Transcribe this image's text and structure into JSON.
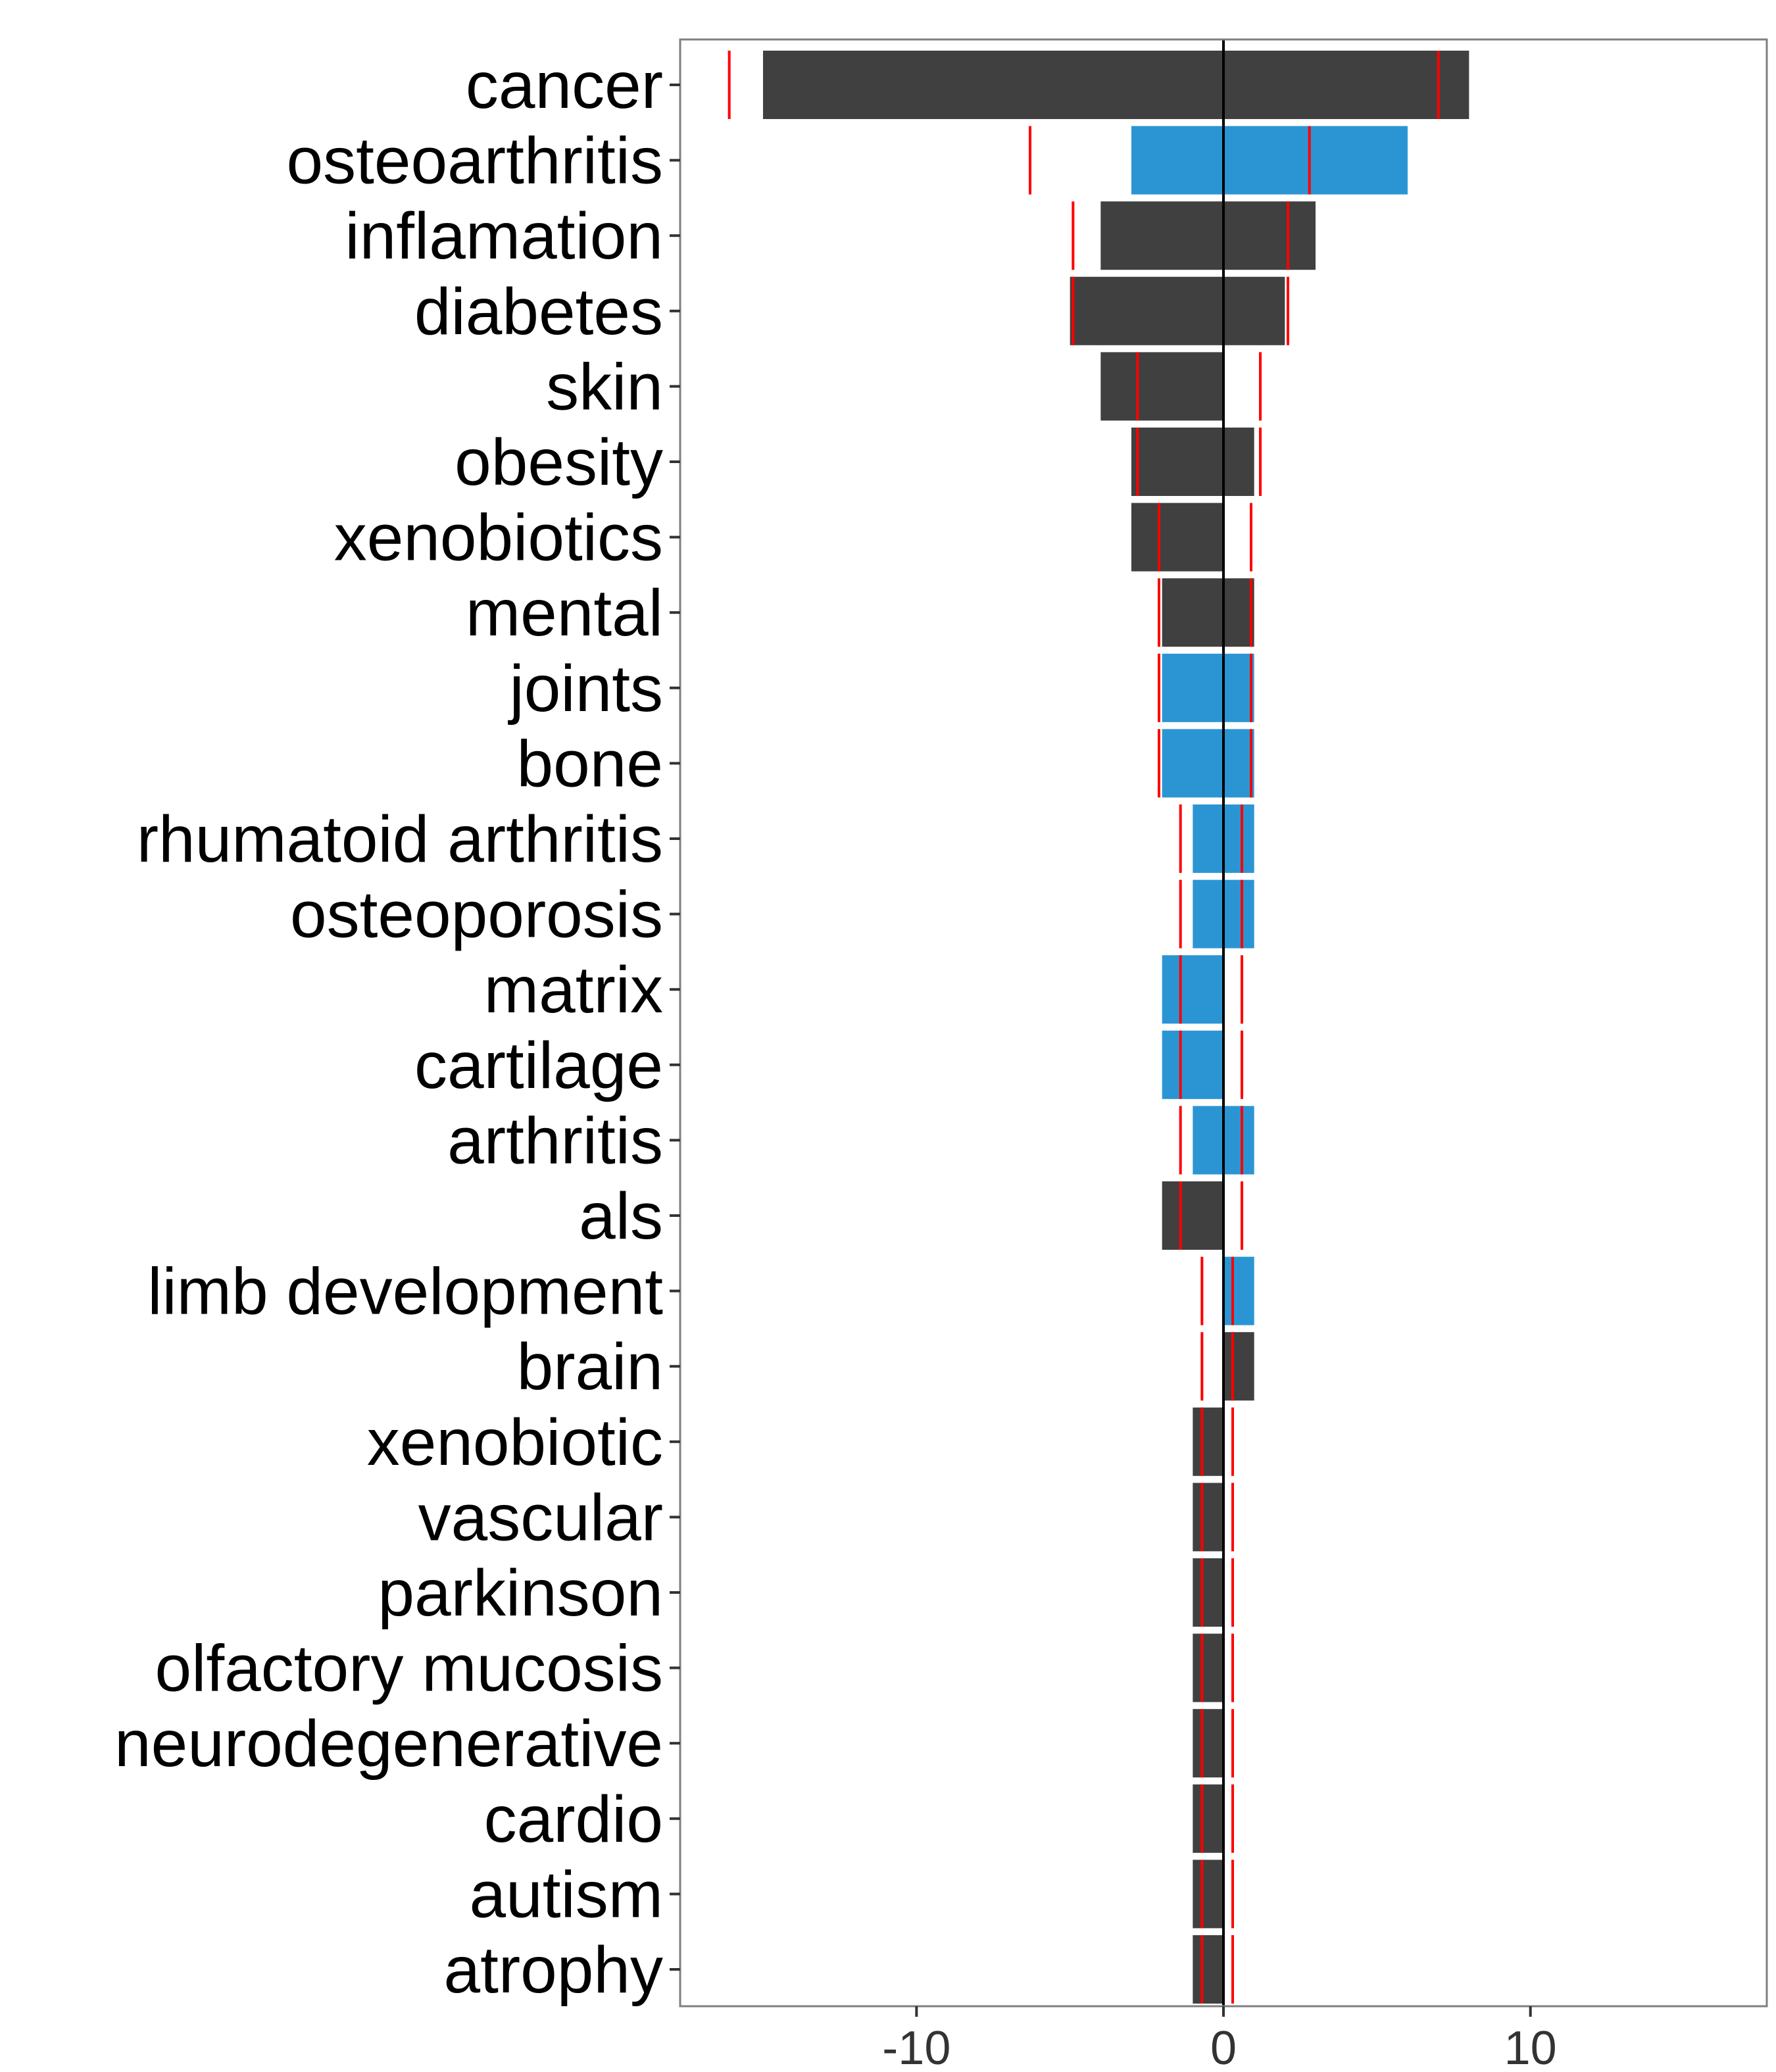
{
  "chart_data": {
    "type": "bar",
    "orientation": "horizontal",
    "title": "",
    "xlabel": "",
    "ylabel": "",
    "xlim": [
      -17.7,
      17.7
    ],
    "x_ticks": [
      -10,
      0,
      10
    ],
    "x_tick_labels": [
      "-10",
      "0",
      "10"
    ],
    "grid": false,
    "legend": "none",
    "colors": {
      "bar_dark": "#404040",
      "bar_blue": "#2b95d4",
      "marker": "#ff0000",
      "zero_line": "#000000",
      "frame": "#7f7f7f",
      "tick": "#333333"
    },
    "categories": [
      "cancer",
      "osteoarthritis",
      "inflamation",
      "diabetes",
      "skin",
      "obesity",
      "xenobiotics",
      "mental",
      "joints",
      "bone",
      "rhumatoid arthritis",
      "osteoporosis",
      "matrix",
      "cartilage",
      "arthritis",
      "als",
      "limb development",
      "brain",
      "xenobiotic",
      "vascular",
      "parkinson",
      "olfactory mucosis",
      "neurodegenerative",
      "cardio",
      "autism",
      "atrophy"
    ],
    "series": [
      {
        "values_negative": [
          -15,
          -3,
          -4,
          -5,
          -4,
          -3,
          -3,
          -2,
          -2,
          -2,
          -1,
          -1,
          -2,
          -2,
          -1,
          -2,
          0,
          0,
          -1,
          -1,
          -1,
          -1,
          -1,
          -1,
          -1,
          -1
        ]
      },
      {
        "values_positive": [
          8,
          6,
          3,
          2,
          0,
          1,
          0,
          1,
          1,
          1,
          1,
          1,
          0,
          0,
          1,
          0,
          1,
          1,
          0,
          0,
          0,
          0,
          0,
          0,
          0,
          0
        ]
      }
    ],
    "bar_color_group": [
      "dark",
      "blue",
      "dark",
      "dark",
      "dark",
      "dark",
      "dark",
      "dark",
      "blue",
      "blue",
      "blue",
      "blue",
      "blue",
      "blue",
      "blue",
      "dark",
      "blue",
      "dark",
      "dark",
      "dark",
      "dark",
      "dark",
      "dark",
      "dark",
      "dark",
      "dark"
    ],
    "markers_negative": [
      -16.1,
      -6.3,
      -4.9,
      -4.9,
      -2.8,
      -2.8,
      -2.1,
      -2.1,
      -2.1,
      -2.1,
      -1.4,
      -1.4,
      -1.4,
      -1.4,
      -1.4,
      -1.4,
      -0.7,
      -0.7,
      -0.7,
      -0.7,
      -0.7,
      -0.7,
      -0.7,
      -0.7,
      -0.7,
      -0.7
    ],
    "markers_positive": [
      7,
      2.8,
      2.1,
      2.1,
      1.2,
      1.2,
      0.9,
      0.9,
      0.9,
      0.9,
      0.6,
      0.6,
      0.6,
      0.6,
      0.6,
      0.6,
      0.3,
      0.3,
      0.3,
      0.3,
      0.3,
      0.3,
      0.3,
      0.3,
      0.3,
      0.3
    ]
  }
}
